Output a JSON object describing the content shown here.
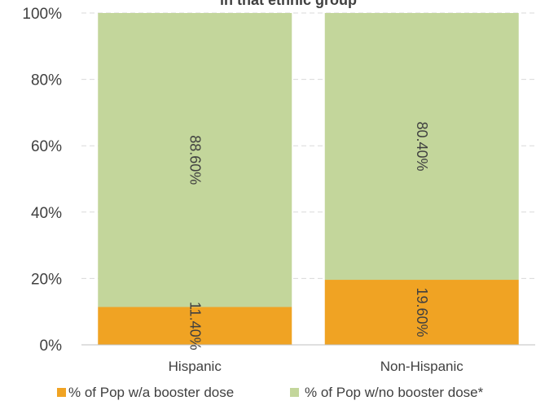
{
  "chart_data": {
    "type": "bar",
    "stacked": true,
    "title": "in that ethnic group",
    "categories": [
      "Hispanic",
      "Non-Hispanic"
    ],
    "series": [
      {
        "name": "% of Pop w/a booster dose",
        "values": [
          11.4,
          19.6
        ],
        "labels": [
          "11.40%",
          "19.60%"
        ],
        "color": "#f0a323"
      },
      {
        "name": "% of Pop w/no booster dose*",
        "values": [
          88.6,
          80.4
        ],
        "labels": [
          "88.60%",
          "80.40%"
        ],
        "color": "#c3d69b"
      }
    ],
    "ylim": [
      0,
      100
    ],
    "yticks": [
      "0%",
      "20%",
      "40%",
      "60%",
      "80%",
      "100%"
    ],
    "grid": true,
    "legend": "bottom"
  }
}
